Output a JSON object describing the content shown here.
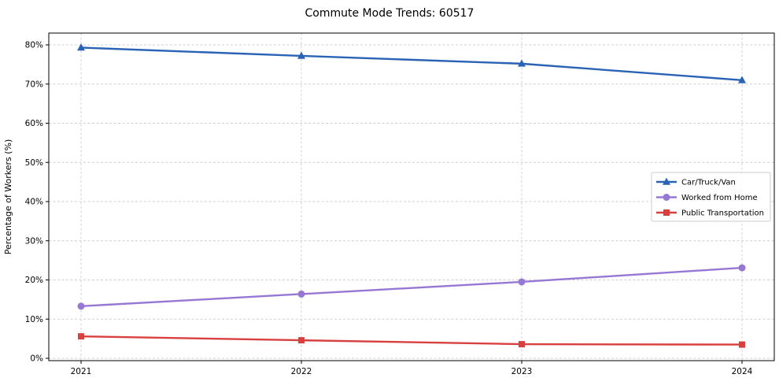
{
  "chart_data": {
    "type": "line",
    "title": "Commute Mode Trends: 60517",
    "xlabel": "",
    "ylabel": "Percentage of Workers (%)",
    "x": [
      2021,
      2022,
      2023,
      2024
    ],
    "x_tick_labels": [
      "2021",
      "2022",
      "2023",
      "2024"
    ],
    "ylim": [
      0,
      80
    ],
    "y_ticks": [
      0,
      10,
      20,
      30,
      40,
      50,
      60,
      70,
      80
    ],
    "y_tick_suffix": "%",
    "grid": true,
    "grid_style": "dashed",
    "legend_position": "center-right",
    "series": [
      {
        "name": "Car/Truck/Van",
        "color": "#2a63b5",
        "marker": "triangle",
        "values": [
          79.3,
          77.2,
          75.2,
          71.0
        ]
      },
      {
        "name": "Worked from Home",
        "color": "#9777d4",
        "marker": "circle",
        "values": [
          13.3,
          16.4,
          19.5,
          23.1
        ]
      },
      {
        "name": "Public Transportation",
        "color": "#d8403f",
        "marker": "square",
        "values": [
          5.6,
          4.6,
          3.6,
          3.5
        ]
      }
    ],
    "colors": {
      "grid": "#cfcfcf",
      "spine": "#000000",
      "background": "#ffffff",
      "legend_border": "#cccccc"
    }
  }
}
